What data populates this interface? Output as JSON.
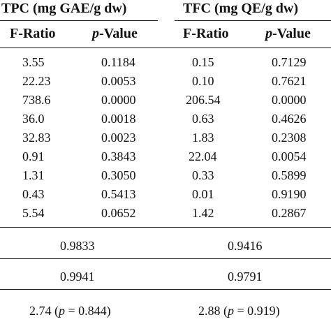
{
  "groups": [
    {
      "label": "TPC (mg GAE/g dw)",
      "col1_header": "F-Ratio",
      "col2_header_prefix": "p",
      "col2_header_suffix": "-Value"
    },
    {
      "label": "TFC (mg QE/g dw)",
      "col1_header": "F-Ratio",
      "col2_header_prefix": "p",
      "col2_header_suffix": "-Value"
    }
  ],
  "rows": [
    {
      "tpc_f": "3.55",
      "tpc_p": "0.1184",
      "tfc_f": "0.15",
      "tfc_p": "0.7129"
    },
    {
      "tpc_f": "22.23",
      "tpc_p": "0.0053",
      "tfc_f": "0.10",
      "tfc_p": "0.7621"
    },
    {
      "tpc_f": "738.6",
      "tpc_p": "0.0000",
      "tfc_f": "206.54",
      "tfc_p": "0.0000"
    },
    {
      "tpc_f": "36.0",
      "tpc_p": "0.0018",
      "tfc_f": "0.63",
      "tfc_p": "0.4626"
    },
    {
      "tpc_f": "32.83",
      "tpc_p": "0.0023",
      "tfc_f": "1.83",
      "tfc_p": "0.2308"
    },
    {
      "tpc_f": "0.91",
      "tpc_p": "0.3843",
      "tfc_f": "22.04",
      "tfc_p": "0.0054"
    },
    {
      "tpc_f": "1.31",
      "tpc_p": "0.3050",
      "tfc_f": "0.33",
      "tfc_p": "0.5899"
    },
    {
      "tpc_f": "0.43",
      "tpc_p": "0.5413",
      "tfc_f": "0.01",
      "tfc_p": "0.9190"
    },
    {
      "tpc_f": "5.54",
      "tpc_p": "0.0652",
      "tfc_f": "1.42",
      "tfc_p": "0.2867"
    }
  ],
  "summary": [
    {
      "tpc": "0.9833",
      "tfc": "0.9416"
    },
    {
      "tpc": "0.9941",
      "tfc": "0.9791"
    }
  ],
  "lack_of_fit": {
    "tpc_value": "2.74",
    "tpc_p": "0.844",
    "tfc_value": "2.88",
    "tfc_p": "0.919",
    "p_symbol": "p",
    "equals": " = "
  }
}
